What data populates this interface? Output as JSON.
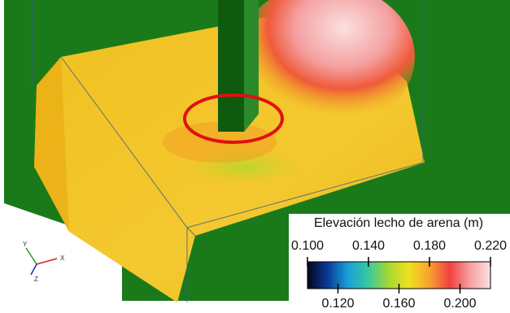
{
  "colorbar": {
    "title": "Elevación lecho de arena (m)",
    "lim": [
      0.1,
      0.22
    ],
    "top_ticks": [
      {
        "value": 0.1,
        "label": "0.100"
      },
      {
        "value": 0.14,
        "label": "0.140"
      },
      {
        "value": 0.18,
        "label": "0.180"
      },
      {
        "value": 0.22,
        "label": "0.220"
      }
    ],
    "bottom_ticks": [
      {
        "value": 0.12,
        "label": "0.120"
      },
      {
        "value": 0.16,
        "label": "0.160"
      },
      {
        "value": 0.2,
        "label": "0.200"
      }
    ],
    "colors": [
      "#05051a",
      "#0a3a9a",
      "#1aa0d8",
      "#38c8a0",
      "#a8d830",
      "#f0e020",
      "#f8a030",
      "#f04040",
      "#f8a0a0",
      "#fbe0e0"
    ]
  },
  "triad": {
    "x": "X",
    "y": "Y",
    "z": "Z"
  }
}
